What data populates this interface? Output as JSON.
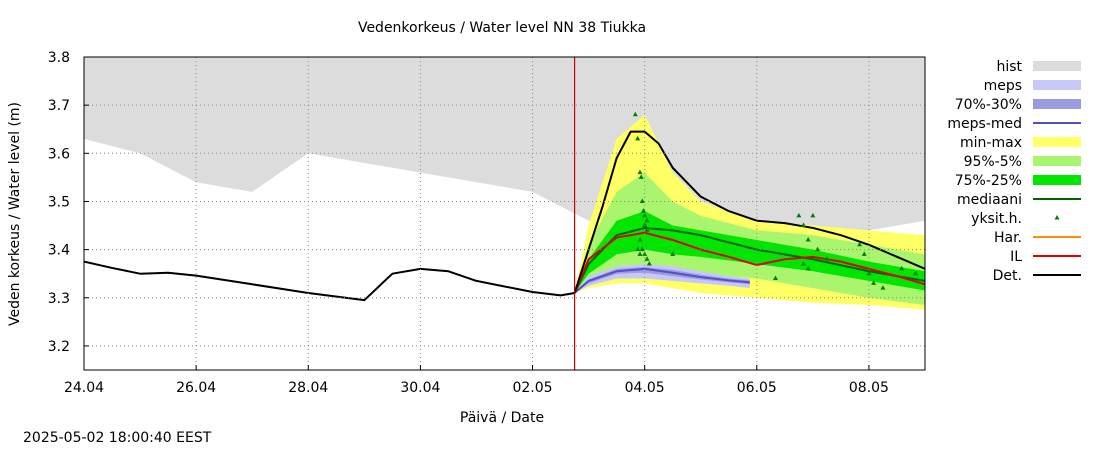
{
  "footer": {
    "timestamp": "2025-05-02 18:00:40 EEST"
  },
  "chart_data": {
    "type": "line",
    "title": "Vedenkorkeus / Water level   NN 38 Tiukka",
    "xlabel": "Päivä / Date",
    "ylabel": "Veden korkeus / Water level (m)",
    "xlim": [
      "2025-04-24",
      "2025-05-09"
    ],
    "ylim": [
      3.15,
      3.8
    ],
    "grid": true,
    "legend_position": "right",
    "x_ticks": [
      "2025-04-24",
      "2025-04-26",
      "2025-04-28",
      "2025-04-30",
      "2025-05-02",
      "2025-05-04",
      "2025-05-06",
      "2025-05-08"
    ],
    "x_tick_labels": [
      "24.04",
      "26.04",
      "28.04",
      "30.04",
      "02.05",
      "04.05",
      "06.05",
      "08.05"
    ],
    "y_ticks": [
      3.2,
      3.3,
      3.4,
      3.5,
      3.6,
      3.7,
      3.8
    ],
    "y_tick_labels": [
      "3.2",
      "3.3",
      "3.4",
      "3.5",
      "3.6",
      "3.7",
      "3.8"
    ],
    "forecast_start": "2025-05-02 18:00",
    "legend": [
      {
        "label": "hist",
        "kind": "band",
        "color": "#dcdcdc"
      },
      {
        "label": "meps",
        "kind": "band",
        "color": "#c8c8f8"
      },
      {
        "label": "70%-30%",
        "kind": "band",
        "color": "#9b9be0"
      },
      {
        "label": "meps-med",
        "kind": "line",
        "color": "#5050c8"
      },
      {
        "label": "min-max",
        "kind": "band",
        "color": "#ffff66"
      },
      {
        "label": "95%-5%",
        "kind": "band",
        "color": "#aaf56e"
      },
      {
        "label": "75%-25%",
        "kind": "band",
        "color": "#00e600"
      },
      {
        "label": "mediaani",
        "kind": "line",
        "color": "#006400"
      },
      {
        "label": "yksit.h.",
        "kind": "marker",
        "color": "#008000"
      },
      {
        "label": "Har.",
        "kind": "line",
        "color": "#ff8c00"
      },
      {
        "label": "IL",
        "kind": "line",
        "color": "#e00000"
      },
      {
        "label": "Det.",
        "kind": "line",
        "color": "#000000"
      }
    ],
    "series": [
      {
        "name": "hist",
        "type": "area_upper",
        "x": [
          "2025-04-24",
          "2025-04-25",
          "2025-04-26",
          "2025-04-27",
          "2025-04-28",
          "2025-04-29",
          "2025-04-30",
          "2025-05-01",
          "2025-05-02",
          "2025-05-03",
          "2025-05-04",
          "2025-05-05",
          "2025-05-06",
          "2025-05-07",
          "2025-05-08",
          "2025-05-09"
        ],
        "y": [
          3.63,
          3.6,
          3.54,
          3.52,
          3.6,
          3.58,
          3.56,
          3.54,
          3.52,
          3.46,
          3.44,
          3.42,
          3.41,
          3.42,
          3.44,
          3.46
        ]
      },
      {
        "name": "Det. (observed)",
        "x": [
          "2025-04-24",
          "2025-04-24 12:00",
          "2025-04-25",
          "2025-04-25 12:00",
          "2025-04-26",
          "2025-04-27",
          "2025-04-28",
          "2025-04-29",
          "2025-04-29 12:00",
          "2025-04-30",
          "2025-04-30 12:00",
          "2025-05-01",
          "2025-05-02",
          "2025-05-02 12:00",
          "2025-05-02 18:00"
        ],
        "y": [
          3.375,
          3.362,
          3.35,
          3.352,
          3.346,
          3.328,
          3.31,
          3.295,
          3.35,
          3.36,
          3.355,
          3.335,
          3.312,
          3.305,
          3.31
        ]
      },
      {
        "name": "min-max",
        "type": "band",
        "x": [
          "2025-05-02 18:00",
          "2025-05-03",
          "2025-05-03 12:00",
          "2025-05-04",
          "2025-05-04 12:00",
          "2025-05-05",
          "2025-05-06",
          "2025-05-07",
          "2025-05-08",
          "2025-05-09"
        ],
        "low": [
          3.31,
          3.32,
          3.33,
          3.33,
          3.32,
          3.31,
          3.3,
          3.29,
          3.285,
          3.275
        ],
        "high": [
          3.31,
          3.45,
          3.63,
          3.68,
          3.56,
          3.5,
          3.46,
          3.45,
          3.44,
          3.43
        ]
      },
      {
        "name": "95%-5%",
        "type": "band",
        "x": [
          "2025-05-02 18:00",
          "2025-05-03",
          "2025-05-03 12:00",
          "2025-05-04",
          "2025-05-04 12:00",
          "2025-05-05",
          "2025-05-06",
          "2025-05-07",
          "2025-05-08",
          "2025-05-09"
        ],
        "low": [
          3.31,
          3.33,
          3.35,
          3.36,
          3.355,
          3.35,
          3.34,
          3.32,
          3.3,
          3.285
        ],
        "high": [
          3.31,
          3.41,
          3.52,
          3.56,
          3.5,
          3.47,
          3.44,
          3.43,
          3.41,
          3.39
        ]
      },
      {
        "name": "75%-25%",
        "type": "band",
        "x": [
          "2025-05-02 18:00",
          "2025-05-03",
          "2025-05-03 12:00",
          "2025-05-04",
          "2025-05-04 12:00",
          "2025-05-05",
          "2025-05-06",
          "2025-05-07",
          "2025-05-08",
          "2025-05-09"
        ],
        "low": [
          3.31,
          3.35,
          3.39,
          3.4,
          3.39,
          3.385,
          3.37,
          3.355,
          3.335,
          3.315
        ],
        "high": [
          3.31,
          3.38,
          3.46,
          3.48,
          3.45,
          3.44,
          3.42,
          3.4,
          3.375,
          3.355
        ]
      },
      {
        "name": "meps",
        "type": "band",
        "x": [
          "2025-05-02 18:00",
          "2025-05-03",
          "2025-05-03 12:00",
          "2025-05-04",
          "2025-05-04 12:00",
          "2025-05-05",
          "2025-05-05 12:00",
          "2025-05-05 21:00"
        ],
        "low": [
          3.31,
          3.325,
          3.34,
          3.34,
          3.335,
          3.33,
          3.325,
          3.32
        ],
        "high": [
          3.31,
          3.345,
          3.365,
          3.37,
          3.365,
          3.355,
          3.345,
          3.34
        ]
      },
      {
        "name": "70%-30%",
        "type": "band",
        "x": [
          "2025-05-02 18:00",
          "2025-05-03",
          "2025-05-03 12:00",
          "2025-05-04",
          "2025-05-04 12:00",
          "2025-05-05",
          "2025-05-05 12:00",
          "2025-05-05 21:00"
        ],
        "low": [
          3.31,
          3.33,
          3.35,
          3.352,
          3.345,
          3.338,
          3.332,
          3.328
        ],
        "high": [
          3.31,
          3.338,
          3.36,
          3.364,
          3.358,
          3.348,
          3.34,
          3.336
        ]
      },
      {
        "name": "meps-med",
        "x": [
          "2025-05-02 18:00",
          "2025-05-03",
          "2025-05-03 12:00",
          "2025-05-04",
          "2025-05-04 12:00",
          "2025-05-05",
          "2025-05-05 12:00",
          "2025-05-05 21:00"
        ],
        "y": [
          3.31,
          3.335,
          3.355,
          3.36,
          3.352,
          3.343,
          3.336,
          3.332
        ]
      },
      {
        "name": "mediaani",
        "x": [
          "2025-05-02 18:00",
          "2025-05-03",
          "2025-05-03 12:00",
          "2025-05-04",
          "2025-05-04 12:00",
          "2025-05-05",
          "2025-05-06",
          "2025-05-07",
          "2025-05-08",
          "2025-05-09"
        ],
        "y": [
          3.31,
          3.37,
          3.43,
          3.445,
          3.44,
          3.43,
          3.4,
          3.38,
          3.355,
          3.335
        ]
      },
      {
        "name": "IL",
        "x": [
          "2025-05-02 18:00",
          "2025-05-03",
          "2025-05-03 12:00",
          "2025-05-04",
          "2025-05-04 12:00",
          "2025-05-05",
          "2025-05-05 12:00",
          "2025-05-06",
          "2025-05-06 12:00",
          "2025-05-07",
          "2025-05-07 12:00",
          "2025-05-08",
          "2025-05-08 12:00",
          "2025-05-09"
        ],
        "y": [
          3.31,
          3.38,
          3.425,
          3.435,
          3.42,
          3.4,
          3.385,
          3.368,
          3.38,
          3.385,
          3.375,
          3.36,
          3.345,
          3.328
        ]
      },
      {
        "name": "Det.",
        "x": [
          "2025-05-02 18:00",
          "2025-05-03",
          "2025-05-03 06:00",
          "2025-05-03 12:00",
          "2025-05-03 18:00",
          "2025-05-04",
          "2025-05-04 06:00",
          "2025-05-04 12:00",
          "2025-05-05",
          "2025-05-05 12:00",
          "2025-05-06",
          "2025-05-06 12:00",
          "2025-05-07",
          "2025-05-07 12:00",
          "2025-05-08",
          "2025-05-08 12:00",
          "2025-05-09"
        ],
        "y": [
          3.31,
          3.4,
          3.49,
          3.59,
          3.645,
          3.645,
          3.62,
          3.57,
          3.51,
          3.48,
          3.46,
          3.455,
          3.445,
          3.43,
          3.41,
          3.385,
          3.36
        ]
      },
      {
        "name": "yksit.h.",
        "type": "scatter",
        "x": [
          "2025-05-03 20:00",
          "2025-05-03 21:00",
          "2025-05-03 22:00",
          "2025-05-03 22:30",
          "2025-05-03 23:00",
          "2025-05-03 23:30",
          "2025-05-04",
          "2025-05-04",
          "2025-05-04 01:00",
          "2025-05-04 01:00",
          "2025-05-03 22:00",
          "2025-05-03 23:00",
          "2025-05-04",
          "2025-05-03 21:00",
          "2025-05-03 22:00",
          "2025-05-04 01:00",
          "2025-05-04 02:00",
          "2025-05-04 12:00",
          "2025-05-06 18:00",
          "2025-05-06 20:00",
          "2025-05-06 22:00",
          "2025-05-07",
          "2025-05-07 02:00",
          "2025-05-06 20:00",
          "2025-05-06 22:00",
          "2025-05-07 06:00",
          "2025-05-06 08:00",
          "2025-05-07 20:00",
          "2025-05-07 22:00",
          "2025-05-08",
          "2025-05-08 02:00",
          "2025-05-08 06:00",
          "2025-05-08 14:00",
          "2025-05-08 20:00"
        ],
        "y": [
          3.68,
          3.63,
          3.56,
          3.55,
          3.5,
          3.48,
          3.47,
          3.45,
          3.46,
          3.44,
          3.42,
          3.4,
          3.39,
          3.4,
          3.39,
          3.38,
          3.37,
          3.39,
          3.47,
          3.45,
          3.42,
          3.47,
          3.4,
          3.37,
          3.36,
          3.38,
          3.34,
          3.41,
          3.39,
          3.35,
          3.33,
          3.32,
          3.36,
          3.35
        ]
      }
    ]
  }
}
